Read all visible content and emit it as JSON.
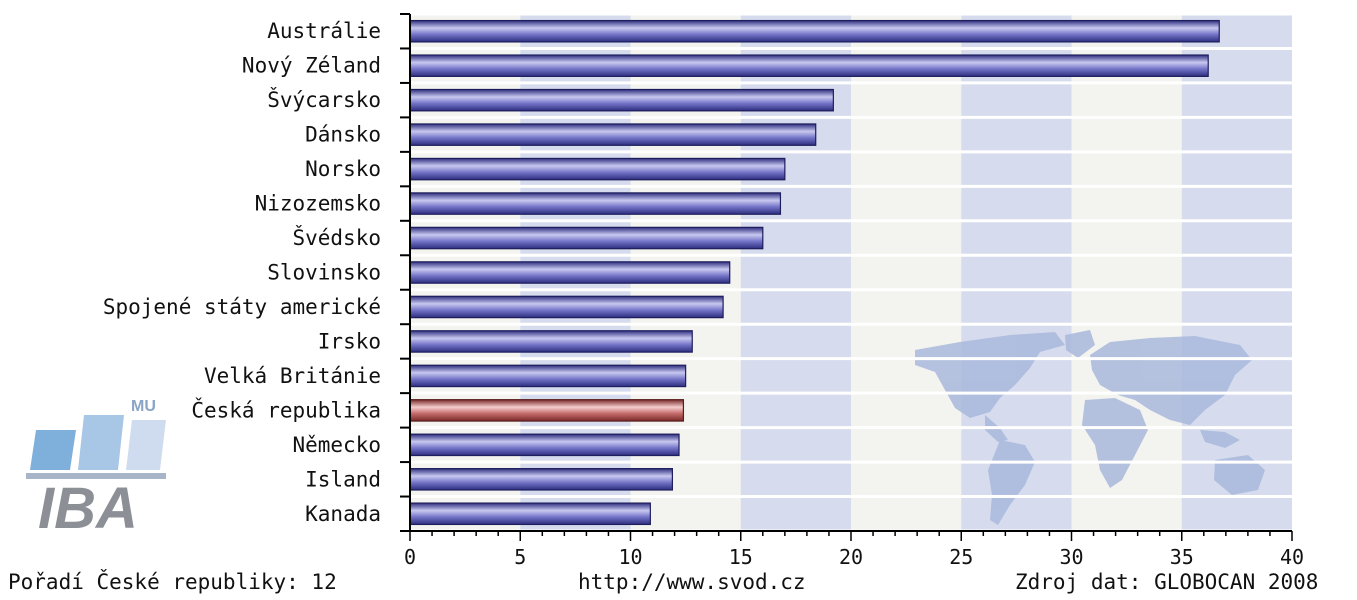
{
  "chart_data": {
    "type": "bar",
    "orientation": "horizontal",
    "categories": [
      "Austrálie",
      "Nový Zéland",
      "Švýcarsko",
      "Dánsko",
      "Norsko",
      "Nizozemsko",
      "Švédsko",
      "Slovinsko",
      "Spojené státy americké",
      "Irsko",
      "Velká Británie",
      "Česká republika",
      "Německo",
      "Island",
      "Kanada"
    ],
    "values": [
      36.7,
      36.2,
      19.2,
      18.4,
      17.0,
      16.8,
      16.0,
      14.5,
      14.2,
      12.8,
      12.5,
      12.4,
      12.2,
      11.9,
      10.9
    ],
    "highlight_index": 11,
    "xlim": [
      0,
      40
    ],
    "xticks": [
      0,
      5,
      10,
      15,
      20,
      25,
      30,
      35,
      40
    ],
    "grid": true,
    "colors": {
      "bar": "#5a5ab8",
      "bar_light": "#c8c8f0",
      "highlight": "#b05050",
      "highlight_light": "#f0c8c8",
      "band_a": "#f3f3ef",
      "band_b": "#d6dcee",
      "map": "#a9b9dc"
    }
  },
  "footer": {
    "rank_text": "Pořadí České republiky: 12",
    "url_text": "http://www.svod.cz",
    "source_text": "Zdroj dat: GLOBOCAN 2008"
  },
  "logo": {
    "main_text": "IBA",
    "sup_text": "MU"
  }
}
